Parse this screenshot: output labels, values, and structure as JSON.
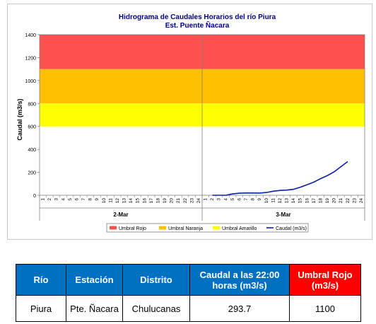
{
  "chart_data": {
    "type": "line",
    "title": "Hidrograma de Caudales Horarios del río Piura",
    "subtitle": "Est. Puente Ñacara",
    "ylabel": "Caudal  (m3/s)",
    "ylim": [
      0,
      1400
    ],
    "yticks": [
      0,
      200,
      400,
      600,
      800,
      1000,
      1200,
      1400
    ],
    "xticks": [
      "1",
      "2",
      "3",
      "4",
      "5",
      "6",
      "7",
      "8",
      "9",
      "10",
      "11",
      "12",
      "13",
      "14",
      "15",
      "16",
      "17",
      "18",
      "19",
      "20",
      "21",
      "22",
      "23",
      "24",
      "1",
      "2",
      "3",
      "4",
      "5",
      "6",
      "7",
      "8",
      "9",
      "10",
      "11",
      "12",
      "13",
      "14",
      "15",
      "16",
      "17",
      "18",
      "19",
      "20",
      "21",
      "22",
      "23",
      "24"
    ],
    "day_groups": [
      "2-Mar",
      "3-Mar"
    ],
    "bands": [
      {
        "name": "Umbral Rojo",
        "from": 1100,
        "to": 1400,
        "color": "#ff5050"
      },
      {
        "name": "Umbral Naranja",
        "from": 800,
        "to": 1100,
        "color": "#ffc000"
      },
      {
        "name": "Umbral Amarillo",
        "from": 600,
        "to": 800,
        "color": "#ffff00"
      }
    ],
    "series": [
      {
        "name": "Caudal (m3/s)",
        "color": "#0b1fa8",
        "x": [
          2,
          3,
          4,
          5,
          6,
          7,
          8,
          9,
          10,
          11,
          12,
          13,
          14,
          15,
          16,
          17,
          18,
          19,
          20,
          21,
          22
        ],
        "values": [
          0,
          0,
          0,
          12,
          18,
          20,
          20,
          19,
          24,
          35,
          42,
          45,
          52,
          70,
          92,
          115,
          145,
          172,
          205,
          250,
          293.7
        ]
      }
    ],
    "legend": [
      "Umbral Rojo",
      "Umbral Naranja",
      "Umbral Amarillo",
      "Caudal (m3/s)"
    ],
    "legend_position": "bottom",
    "grid": false
  },
  "table": {
    "headers": [
      "Río",
      "Estación",
      "Distrito",
      "Caudal a las 22:00 horas (m3/s)",
      "Umbral Rojo (m3/s)"
    ],
    "header_colors": [
      "#0070c0",
      "#0070c0",
      "#0070c0",
      "#0070c0",
      "#ff0000"
    ],
    "row": [
      "Piura",
      "Pte. Ñacara",
      "Chulucanas",
      "293.7",
      "1100"
    ]
  }
}
